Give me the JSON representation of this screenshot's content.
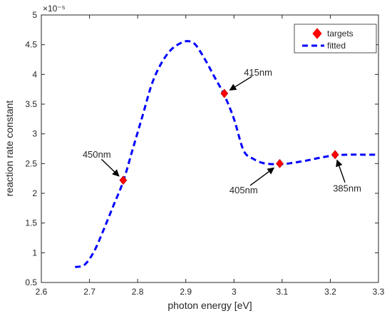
{
  "chart_data": {
    "type": "line",
    "xlabel": "photon energy [eV]",
    "ylabel": "reaction rate constant",
    "exponent_label": "×10⁻⁵",
    "xlim": [
      2.6,
      3.3
    ],
    "ylim": [
      0.5,
      5
    ],
    "xticks": [
      2.6,
      2.7,
      2.8,
      2.9,
      3.0,
      3.1,
      3.2,
      3.3
    ],
    "xtick_labels": [
      "2.6",
      "2.7",
      "2.8",
      "2.9",
      "3",
      "3.1",
      "3.2",
      "3.3"
    ],
    "yticks": [
      0.5,
      1,
      1.5,
      2,
      2.5,
      3,
      3.5,
      4,
      4.5,
      5
    ],
    "ytick_labels": [
      "0.5",
      "1",
      "1.5",
      "2",
      "2.5",
      "3",
      "3.5",
      "4",
      "4.5",
      "5"
    ],
    "grid": false,
    "legend_position": "top-right",
    "series": [
      {
        "name": "targets",
        "kind": "marker",
        "marker": "diamond",
        "color": "#ff0000",
        "x": [
          2.77,
          2.98,
          3.095,
          3.21
        ],
        "y": [
          2.22,
          3.68,
          2.5,
          2.65
        ]
      },
      {
        "name": "fitted",
        "kind": "line",
        "style": "dashed",
        "color": "#0000ff",
        "x": [
          2.67,
          2.69,
          2.71,
          2.73,
          2.75,
          2.77,
          2.79,
          2.81,
          2.83,
          2.85,
          2.87,
          2.89,
          2.905,
          2.92,
          2.94,
          2.96,
          2.98,
          3.0,
          3.02,
          3.04,
          3.06,
          3.08,
          3.1,
          3.12,
          3.15,
          3.18,
          3.21,
          3.24,
          3.27,
          3.3
        ],
        "y": [
          0.76,
          0.8,
          1.03,
          1.4,
          1.8,
          2.2,
          2.75,
          3.3,
          3.85,
          4.2,
          4.42,
          4.53,
          4.56,
          4.5,
          4.25,
          3.95,
          3.65,
          3.25,
          2.72,
          2.58,
          2.51,
          2.49,
          2.49,
          2.51,
          2.55,
          2.6,
          2.64,
          2.65,
          2.65,
          2.65
        ]
      }
    ],
    "annotations": [
      {
        "text": "450nm",
        "x": 2.77,
        "y": 2.22,
        "label_x": 2.715,
        "label_y": 2.65
      },
      {
        "text": "415nm",
        "x": 2.98,
        "y": 3.68,
        "label_x": 3.05,
        "label_y": 4.03
      },
      {
        "text": "405nm",
        "x": 3.095,
        "y": 2.5,
        "label_x": 3.02,
        "label_y": 2.05
      },
      {
        "text": "385nm",
        "x": 3.21,
        "y": 2.65,
        "label_x": 3.235,
        "label_y": 2.08
      }
    ]
  }
}
